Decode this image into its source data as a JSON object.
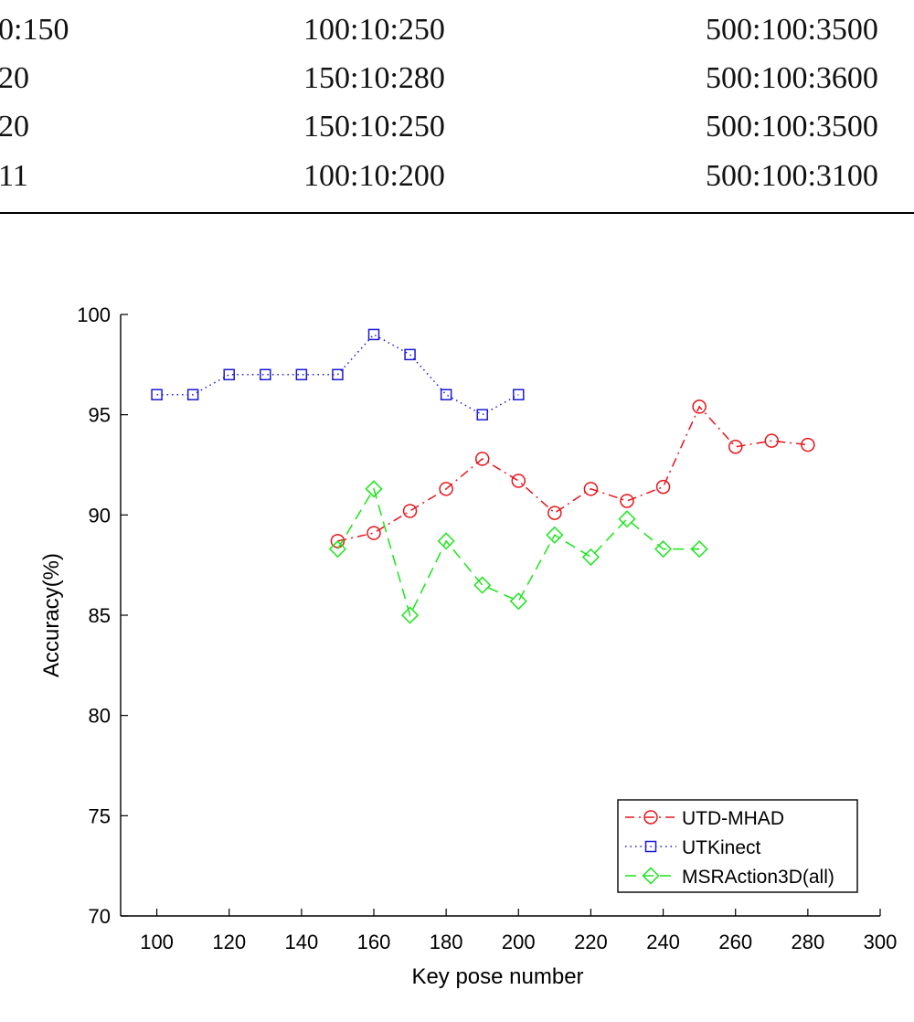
{
  "table": {
    "rows": [
      [
        "0:150",
        "100:10:250",
        "500:100:3500"
      ],
      [
        "20",
        "150:10:280",
        "500:100:3600"
      ],
      [
        "20",
        "150:10:250",
        "500:100:3500"
      ],
      [
        "11",
        "100:10:200",
        "500:100:3100"
      ]
    ]
  },
  "chart_data": {
    "type": "line",
    "xlabel": "Key pose number",
    "ylabel": "Accuracy(%)",
    "xlim": [
      90,
      300
    ],
    "ylim": [
      70,
      100
    ],
    "xticks": [
      100,
      120,
      140,
      160,
      180,
      200,
      220,
      240,
      260,
      280,
      300
    ],
    "yticks": [
      70,
      75,
      80,
      85,
      90,
      95,
      100
    ],
    "grid": false,
    "legend_position": "bottom-right",
    "series": [
      {
        "name": "UTD-MHAD",
        "color": "#e8151b",
        "line_style": "dash-dot",
        "marker": "circle",
        "x": [
          150,
          160,
          170,
          180,
          190,
          200,
          210,
          220,
          230,
          240,
          250,
          260,
          270,
          280
        ],
        "y": [
          88.7,
          89.1,
          90.2,
          91.3,
          92.8,
          91.7,
          90.1,
          91.3,
          90.7,
          91.4,
          95.4,
          93.4,
          93.7,
          93.5
        ]
      },
      {
        "name": "UTKinect",
        "color": "#1a1ad6",
        "line_style": "dotted",
        "marker": "square",
        "x": [
          100,
          110,
          120,
          130,
          140,
          150,
          160,
          170,
          180,
          190,
          200
        ],
        "y": [
          96,
          96,
          97,
          97,
          97,
          97,
          99,
          98,
          96,
          95,
          96
        ]
      },
      {
        "name": "MSRAction3D(all)",
        "color": "#19e619",
        "line_style": "dashed",
        "marker": "diamond",
        "x": [
          150,
          160,
          170,
          180,
          190,
          200,
          210,
          220,
          230,
          240,
          250
        ],
        "y": [
          88.3,
          91.3,
          85.0,
          88.7,
          86.5,
          85.7,
          89.0,
          87.9,
          89.8,
          88.3,
          88.3
        ]
      }
    ]
  }
}
